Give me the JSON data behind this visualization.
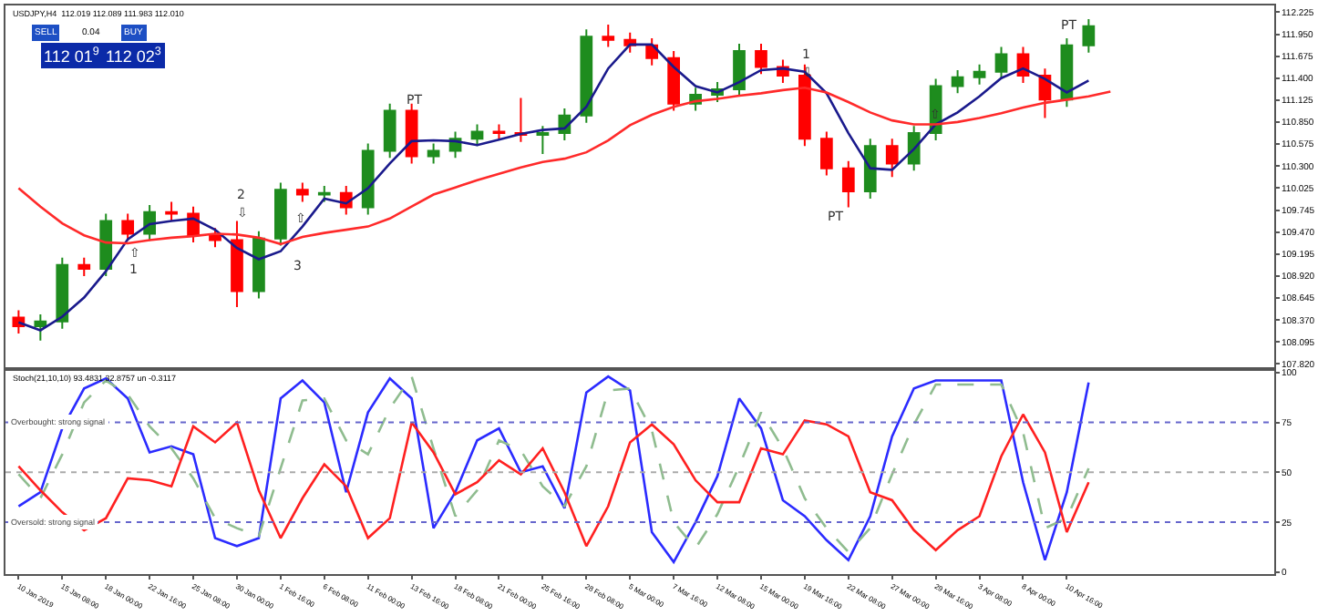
{
  "chart_data": [
    {
      "type": "candlestick",
      "title": "USDJPY,H4  112.019 112.089 111.983 112.010",
      "ohlc": [
        [
          108.4,
          108.49,
          108.2,
          108.29
        ],
        [
          108.29,
          108.44,
          108.11,
          108.35
        ],
        [
          108.35,
          109.15,
          108.26,
          109.06
        ],
        [
          109.06,
          109.15,
          108.92,
          109.01
        ],
        [
          109.01,
          109.7,
          108.92,
          109.61
        ],
        [
          109.61,
          109.7,
          109.36,
          109.45
        ],
        [
          109.45,
          109.81,
          109.36,
          109.72
        ],
        [
          109.72,
          109.85,
          109.61,
          109.7
        ],
        [
          109.7,
          109.79,
          109.34,
          109.43
        ],
        [
          109.43,
          109.52,
          109.28,
          109.37
        ],
        [
          109.37,
          109.61,
          108.53,
          108.73
        ],
        [
          108.73,
          109.48,
          108.64,
          109.39
        ],
        [
          109.39,
          110.09,
          109.3,
          110.0
        ],
        [
          110.0,
          110.09,
          109.85,
          109.94
        ],
        [
          109.94,
          110.05,
          109.85,
          109.96
        ],
        [
          109.96,
          110.05,
          109.69,
          109.78
        ],
        [
          109.78,
          110.58,
          109.69,
          110.49
        ],
        [
          110.49,
          111.08,
          110.4,
          110.99
        ],
        [
          110.99,
          111.08,
          110.33,
          110.42
        ],
        [
          110.42,
          110.58,
          110.33,
          110.49
        ],
        [
          110.49,
          110.73,
          110.4,
          110.64
        ],
        [
          110.64,
          110.82,
          110.55,
          110.73
        ],
        [
          110.73,
          110.82,
          110.62,
          110.71
        ],
        [
          110.71,
          111.15,
          110.6,
          110.69
        ],
        [
          110.69,
          110.8,
          110.45,
          110.71
        ],
        [
          110.71,
          111.02,
          110.62,
          110.93
        ],
        [
          110.93,
          112.01,
          110.84,
          111.92
        ],
        [
          111.92,
          112.07,
          111.79,
          111.88
        ],
        [
          111.88,
          111.97,
          111.72,
          111.81
        ],
        [
          111.81,
          111.9,
          111.56,
          111.65
        ],
        [
          111.65,
          111.74,
          110.99,
          111.08
        ],
        [
          111.08,
          111.28,
          110.99,
          111.19
        ],
        [
          111.19,
          111.35,
          111.1,
          111.26
        ],
        [
          111.26,
          111.83,
          111.17,
          111.74
        ],
        [
          111.74,
          111.83,
          111.45,
          111.54
        ],
        [
          111.54,
          111.63,
          111.34,
          111.43
        ],
        [
          111.43,
          111.57,
          110.55,
          110.64
        ],
        [
          110.64,
          110.73,
          110.18,
          110.27
        ],
        [
          110.27,
          110.36,
          109.78,
          109.98
        ],
        [
          109.98,
          110.64,
          109.89,
          110.55
        ],
        [
          110.55,
          110.64,
          110.16,
          110.33
        ],
        [
          110.33,
          110.8,
          110.24,
          110.71
        ],
        [
          110.71,
          111.39,
          110.62,
          111.3
        ],
        [
          111.3,
          111.5,
          111.21,
          111.41
        ],
        [
          111.41,
          111.57,
          111.32,
          111.48
        ],
        [
          111.48,
          111.79,
          111.39,
          111.7
        ],
        [
          111.7,
          111.79,
          111.34,
          111.43
        ],
        [
          111.43,
          111.52,
          110.9,
          111.13
        ],
        [
          111.13,
          111.9,
          111.04,
          111.81
        ],
        [
          111.81,
          112.14,
          111.72,
          112.05
        ],
        null,
        null,
        null,
        null,
        null,
        null,
        null,
        null
      ],
      "colors": [
        "#ff0000",
        "#1e8c1e",
        "#1e8c1e",
        "#ff0000",
        "#1e8c1e",
        "#ff0000",
        "#1e8c1e",
        "#ff0000",
        "#ff0000",
        "#ff0000",
        "#ff0000",
        "#1e8c1e",
        "#1e8c1e",
        "#ff0000",
        "#1e8c1e",
        "#ff0000",
        "#1e8c1e",
        "#1e8c1e",
        "#ff0000",
        "#1e8c1e",
        "#1e8c1e",
        "#1e8c1e",
        "#ff0000",
        "#ff0000",
        "#1e8c1e",
        "#1e8c1e",
        "#1e8c1e",
        "#ff0000",
        "#ff0000",
        "#ff0000",
        "#ff0000",
        "#1e8c1e",
        "#1e8c1e",
        "#1e8c1e",
        "#ff0000",
        "#ff0000",
        "#ff0000",
        "#ff0000",
        "#ff0000",
        "#1e8c1e",
        "#ff0000",
        "#1e8c1e",
        "#1e8c1e",
        "#1e8c1e",
        "#1e8c1e",
        "#1e8c1e",
        "#ff0000",
        "#ff0000",
        "#1e8c1e",
        "#1e8c1e",
        null,
        null,
        null,
        null,
        null,
        null,
        null,
        null
      ],
      "series": [
        {
          "type": "line",
          "color": "#1a1a8c",
          "values": [
            108.34,
            108.24,
            108.41,
            108.65,
            108.98,
            109.38,
            109.57,
            109.61,
            109.64,
            109.5,
            109.27,
            109.13,
            109.23,
            109.54,
            109.89,
            109.83,
            110.02,
            110.33,
            110.61,
            110.62,
            110.61,
            110.56,
            110.63,
            110.7,
            110.75,
            110.77,
            111.04,
            111.52,
            111.82,
            111.82,
            111.54,
            111.3,
            111.22,
            111.35,
            111.5,
            111.52,
            111.48,
            111.21,
            110.71,
            110.27,
            110.25,
            110.51,
            110.82,
            110.97,
            111.17,
            111.4,
            111.52,
            111.39,
            111.22,
            111.37,
            null,
            null,
            null,
            null,
            null,
            null,
            null,
            null
          ]
        },
        {
          "type": "line",
          "color": "#ff2a2a",
          "values": [
            110.02,
            109.79,
            109.58,
            109.43,
            109.34,
            109.33,
            109.37,
            109.4,
            109.42,
            109.45,
            109.44,
            109.4,
            109.32,
            109.41,
            109.46,
            109.5,
            109.54,
            109.64,
            109.79,
            109.94,
            110.03,
            110.12,
            110.2,
            110.28,
            110.35,
            110.39,
            110.47,
            110.62,
            110.81,
            110.94,
            111.04,
            111.11,
            111.14,
            111.18,
            111.21,
            111.25,
            111.28,
            111.22,
            111.1,
            110.97,
            110.87,
            110.82,
            110.82,
            110.85,
            110.9,
            110.96,
            111.03,
            111.09,
            111.13,
            111.17,
            111.23,
            null,
            null,
            null,
            null,
            null,
            null,
            null
          ]
        }
      ],
      "ylim": [
        107.78,
        112.31
      ],
      "yticks": [
        112.225,
        {
          "value": 111.95,
          "label": "111.950"
        },
        111.675,
        {
          "value": 111.4,
          "label": "111.400"
        },
        111.125,
        {
          "value": 110.85,
          "label": "110.850"
        },
        110.575,
        {
          "value": 110.3,
          "label": "110.300"
        },
        110.025,
        109.745,
        {
          "value": 109.47,
          "label": "109.470"
        },
        109.195,
        {
          "value": 108.92,
          "label": "108.920"
        },
        108.645,
        {
          "value": 108.37,
          "label": "108.370"
        },
        108.095,
        {
          "value": 107.82,
          "label": "107.820"
        }
      ],
      "tick_labels": "y",
      "annotations": [
        "SELL",
        "0.04",
        "BUY",
        "112 01$^{9}$",
        "112 02$^{3}$",
        "PT",
        "1",
        "2",
        "3",
        "PT",
        "1",
        "PT",
        "⇧",
        "⇩",
        "⇧",
        "⇩",
        "⇧"
      ]
    },
    {
      "type": "line",
      "title": "Stoch(21,10,10) 93.4831 32.8757 un -0.3117",
      "categories": [
        "10 Jan 2019",
        null,
        "15 Jan 08:00",
        null,
        "18 Jan 00:00",
        null,
        "22 Jan 16:00",
        null,
        "25 Jan 08:00",
        null,
        "30 Jan 00:00",
        null,
        "1 Feb 16:00",
        null,
        "6 Feb 08:00",
        null,
        "11 Feb 00:00",
        null,
        "13 Feb 16:00",
        null,
        "18 Feb 08:00",
        null,
        "21 Feb 00:00",
        null,
        "25 Feb 16:00",
        null,
        "28 Feb 08:00",
        null,
        "5 Mar 00:00",
        null,
        "7 Mar 16:00",
        null,
        "12 Mar 08:00",
        null,
        "15 Mar 00:00",
        null,
        "19 Mar 16:00",
        null,
        "22 Mar 08:00",
        null,
        "27 Mar 00:00",
        null,
        "29 Mar 16:00",
        null,
        "3 Apr 08:00",
        null,
        "8 Apr 00:00",
        null,
        "10 Apr 16:00",
        null,
        null,
        null,
        null,
        null,
        null,
        null,
        null,
        null
      ],
      "series": [
        {
          "color": "#2b2bff",
          "line_style": "solid",
          "values": [
            33,
            40,
            72,
            92,
            97,
            87,
            60,
            63,
            59,
            17,
            13,
            17,
            87,
            96,
            85,
            40,
            80,
            97,
            87,
            22,
            40,
            66,
            72,
            50,
            53,
            32,
            90,
            98,
            91,
            20,
            5,
            25,
            48,
            87,
            72,
            36,
            28,
            16,
            6,
            28,
            68,
            92,
            96,
            96,
            96,
            96,
            45,
            6,
            40,
            95,
            null,
            null,
            null,
            null,
            null,
            null,
            null,
            null
          ]
        },
        {
          "color": "#8fbc8f",
          "line_style": "dashed",
          "values": [
            49,
            37,
            59,
            85,
            96,
            89,
            73,
            62,
            47,
            27,
            22,
            18,
            52,
            86,
            87,
            66,
            59,
            82,
            98,
            62,
            28,
            41,
            66,
            61,
            43,
            33,
            53,
            91,
            92,
            71,
            25,
            12,
            29,
            53,
            80,
            62,
            37,
            22,
            10,
            22,
            49,
            74,
            94,
            94,
            94,
            94,
            70,
            22,
            27,
            52,
            null,
            null,
            null,
            null,
            null,
            null,
            null,
            null
          ]
        },
        {
          "color": "#ff2020",
          "line_style": "solid",
          "values": [
            53,
            41,
            30,
            21,
            27,
            47,
            46,
            43,
            73,
            65,
            75,
            41,
            17,
            37,
            54,
            43,
            17,
            27,
            75,
            60,
            39,
            45,
            56,
            49,
            62,
            40,
            13,
            33,
            65,
            74,
            64,
            46,
            35,
            35,
            62,
            59,
            76,
            74,
            68,
            40,
            36,
            21,
            11,
            21,
            28,
            58,
            79,
            60,
            20,
            45,
            null,
            null,
            null,
            null,
            null,
            null,
            null,
            null
          ]
        }
      ],
      "ylim": [
        -1,
        101
      ],
      "yticks": [
        0,
        25,
        50,
        75,
        100
      ],
      "ref_lines": [
        {
          "axis": "y",
          "value": 75,
          "label": "Overbought: strong signal",
          "color": "#6666cc",
          "line_style": "dotted"
        },
        {
          "axis": "y",
          "value": 50,
          "color": "#aaaaaa",
          "line_style": "dotted"
        },
        {
          "axis": "y",
          "value": 25,
          "label": "Oversold: strong signal",
          "color": "#6666cc",
          "line_style": "dotted"
        }
      ],
      "tick_labels": "xy"
    }
  ]
}
